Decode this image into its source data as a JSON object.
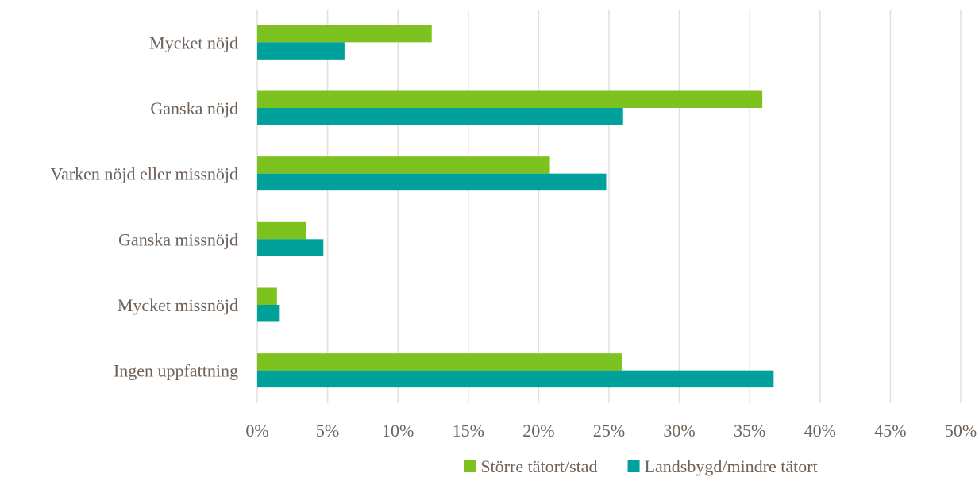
{
  "chart_data": {
    "type": "bar",
    "orientation": "horizontal",
    "categories": [
      "Mycket nöjd",
      "Ganska nöjd",
      "Varken nöjd eller missnöjd",
      "Ganska missnöjd",
      "Mycket missnöjd",
      "Ingen uppfattning"
    ],
    "series": [
      {
        "name": "Större tätort/stad",
        "color": "#7dc21e",
        "values": [
          12.4,
          35.9,
          20.8,
          3.5,
          1.4,
          25.9
        ]
      },
      {
        "name": "Landsbygd/mindre tätort",
        "color": "#00a19a",
        "values": [
          6.2,
          26.0,
          24.8,
          4.7,
          1.6,
          36.7
        ]
      }
    ],
    "xlim": [
      0,
      50
    ],
    "xticks": [
      0,
      5,
      10,
      15,
      20,
      25,
      30,
      35,
      40,
      45,
      50
    ],
    "tick_labels": [
      "0%",
      "5%",
      "10%",
      "15%",
      "20%",
      "25%",
      "30%",
      "35%",
      "40%",
      "45%",
      "50%"
    ],
    "grid": true,
    "legend_position": "bottom"
  }
}
